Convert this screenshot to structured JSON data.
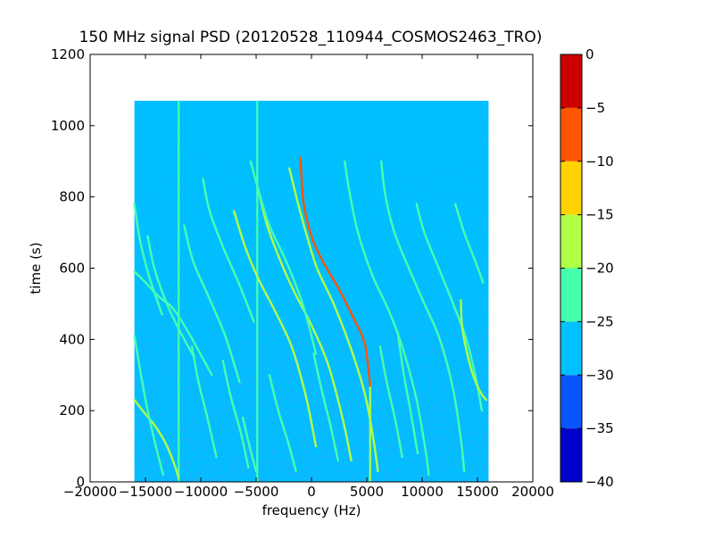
{
  "chart_data": {
    "type": "heatmap",
    "title": "150 MHz signal PSD (20120528_110944_COSMOS2463_TRO)",
    "xlabel": "frequency (Hz)",
    "ylabel": "time (s)",
    "xlim": [
      -20000,
      20000
    ],
    "ylim": [
      0,
      1200
    ],
    "x_ticks": [
      {
        "value": -20000,
        "label": "−20000"
      },
      {
        "value": -15000,
        "label": "−15000"
      },
      {
        "value": -10000,
        "label": "−10000"
      },
      {
        "value": -5000,
        "label": "−5000"
      },
      {
        "value": 0,
        "label": "0"
      },
      {
        "value": 5000,
        "label": "5000"
      },
      {
        "value": 10000,
        "label": "10000"
      },
      {
        "value": 15000,
        "label": "15000"
      },
      {
        "value": 20000,
        "label": "20000"
      }
    ],
    "y_ticks": [
      {
        "value": 0,
        "label": "0"
      },
      {
        "value": 200,
        "label": "200"
      },
      {
        "value": 400,
        "label": "400"
      },
      {
        "value": 600,
        "label": "600"
      },
      {
        "value": 800,
        "label": "800"
      },
      {
        "value": 1000,
        "label": "1000"
      },
      {
        "value": 1200,
        "label": "1200"
      }
    ],
    "data_extent": {
      "x": [
        -16000,
        16000
      ],
      "y": [
        0,
        1070
      ]
    },
    "grid": false,
    "colorbar": {
      "levels": [
        -40,
        -35,
        -30,
        -25,
        -20,
        -15,
        -10,
        -5,
        0
      ],
      "tick_labels": [
        "−40",
        "−35",
        "−30",
        "−25",
        "−20",
        "−15",
        "−10",
        "−5",
        "0"
      ],
      "colors": [
        "#0000cd",
        "#0a55ff",
        "#00c0ff",
        "#46ffae",
        "#b0ff46",
        "#ffd200",
        "#ff5400",
        "#cd0000"
      ]
    },
    "background_level_color": "#00c0ff",
    "vertical_lines": [
      {
        "x": -12000,
        "y_range": [
          0,
          1070
        ],
        "color": "#46ffae"
      },
      {
        "x": -4900,
        "y_range": [
          0,
          1070
        ],
        "color": "#46ffae"
      },
      {
        "x": 5300,
        "y_range": [
          0,
          280
        ],
        "color": "#b0ff46"
      }
    ],
    "series": [
      {
        "color": "#ff5400",
        "points": [
          [
            -1000,
            910
          ],
          [
            -700,
            780
          ],
          [
            0,
            690
          ],
          [
            1000,
            620
          ],
          [
            2500,
            540
          ],
          [
            3800,
            460
          ],
          [
            4800,
            390
          ],
          [
            5200,
            300
          ],
          [
            5300,
            270
          ]
        ]
      },
      {
        "color": "#b0ff46",
        "points": [
          [
            -2000,
            880
          ],
          [
            -1200,
            780
          ],
          [
            -500,
            700
          ],
          [
            500,
            600
          ],
          [
            2000,
            500
          ],
          [
            3500,
            380
          ],
          [
            4800,
            250
          ],
          [
            5600,
            120
          ],
          [
            6000,
            30
          ]
        ]
      },
      {
        "color": "#b0ff46",
        "points": [
          [
            -4800,
            820
          ],
          [
            -4000,
            720
          ],
          [
            -2800,
            620
          ],
          [
            -1500,
            530
          ],
          [
            0,
            440
          ],
          [
            1500,
            330
          ],
          [
            2800,
            180
          ],
          [
            3600,
            60
          ]
        ]
      },
      {
        "color": "#b0ff46",
        "points": [
          [
            -7000,
            760
          ],
          [
            -6000,
            660
          ],
          [
            -4800,
            570
          ],
          [
            -3300,
            480
          ],
          [
            -1800,
            380
          ],
          [
            -500,
            240
          ],
          [
            400,
            100
          ]
        ]
      },
      {
        "color": "#46ffae",
        "points": [
          [
            -5500,
            900
          ],
          [
            -4800,
            820
          ],
          [
            -3800,
            720
          ],
          [
            -2300,
            620
          ],
          [
            -800,
            500
          ],
          [
            400,
            360
          ]
        ]
      },
      {
        "color": "#46ffae",
        "points": [
          [
            3000,
            900
          ],
          [
            3400,
            820
          ],
          [
            4200,
            700
          ],
          [
            5500,
            580
          ],
          [
            7000,
            480
          ],
          [
            8300,
            370
          ],
          [
            9500,
            230
          ],
          [
            10300,
            90
          ],
          [
            10600,
            20
          ]
        ]
      },
      {
        "color": "#46ffae",
        "points": [
          [
            6300,
            900
          ],
          [
            6700,
            800
          ],
          [
            7500,
            700
          ],
          [
            8800,
            600
          ],
          [
            10200,
            500
          ],
          [
            11600,
            400
          ],
          [
            12800,
            260
          ],
          [
            13500,
            120
          ],
          [
            13800,
            30
          ]
        ]
      },
      {
        "color": "#46ffae",
        "points": [
          [
            9500,
            780
          ],
          [
            10200,
            700
          ],
          [
            11500,
            600
          ],
          [
            12800,
            500
          ],
          [
            14000,
            400
          ],
          [
            14800,
            300
          ],
          [
            15400,
            200
          ]
        ]
      },
      {
        "color": "#46ffae",
        "points": [
          [
            13000,
            780
          ],
          [
            13800,
            700
          ],
          [
            14800,
            620
          ],
          [
            15500,
            560
          ]
        ]
      },
      {
        "color": "#b0ff46",
        "points": [
          [
            13500,
            510
          ],
          [
            13600,
            440
          ],
          [
            14000,
            370
          ],
          [
            14600,
            300
          ],
          [
            15300,
            250
          ],
          [
            15800,
            230
          ]
        ]
      },
      {
        "color": "#46ffae",
        "points": [
          [
            -16000,
            590
          ],
          [
            -15000,
            560
          ],
          [
            -13800,
            520
          ],
          [
            -12600,
            490
          ],
          [
            -11500,
            440
          ],
          [
            -10400,
            380
          ],
          [
            -9000,
            300
          ]
        ]
      },
      {
        "color": "#b0ff46",
        "points": [
          [
            -16000,
            230
          ],
          [
            -15000,
            190
          ],
          [
            -14200,
            160
          ],
          [
            -13200,
            110
          ],
          [
            -12400,
            50
          ],
          [
            -12000,
            10
          ]
        ]
      },
      {
        "color": "#46ffae",
        "points": [
          [
            -16000,
            410
          ],
          [
            -15400,
            300
          ],
          [
            -14800,
            200
          ],
          [
            -13900,
            80
          ],
          [
            -13400,
            20
          ]
        ]
      },
      {
        "color": "#46ffae",
        "points": [
          [
            -16000,
            780
          ],
          [
            -15500,
            680
          ],
          [
            -14700,
            580
          ],
          [
            -13500,
            470
          ]
        ]
      },
      {
        "color": "#46ffae",
        "points": [
          [
            -14800,
            690
          ],
          [
            -14200,
            600
          ],
          [
            -13200,
            510
          ],
          [
            -12000,
            430
          ],
          [
            -10600,
            350
          ]
        ]
      },
      {
        "color": "#46ffae",
        "points": [
          [
            -11500,
            720
          ],
          [
            -10700,
            620
          ],
          [
            -9300,
            520
          ],
          [
            -7800,
            410
          ],
          [
            -6500,
            280
          ]
        ]
      },
      {
        "color": "#46ffae",
        "points": [
          [
            -9800,
            850
          ],
          [
            -9200,
            760
          ],
          [
            -8000,
            660
          ],
          [
            -6600,
            560
          ],
          [
            -5200,
            450
          ]
        ]
      },
      {
        "color": "#46ffae",
        "points": [
          [
            -10800,
            380
          ],
          [
            -10200,
            280
          ],
          [
            -9400,
            180
          ],
          [
            -8600,
            70
          ]
        ]
      },
      {
        "color": "#46ffae",
        "points": [
          [
            -8000,
            340
          ],
          [
            -7300,
            240
          ],
          [
            -6400,
            140
          ],
          [
            -5700,
            40
          ]
        ]
      },
      {
        "color": "#46ffae",
        "points": [
          [
            -3800,
            300
          ],
          [
            -3000,
            200
          ],
          [
            -2100,
            110
          ],
          [
            -1400,
            30
          ]
        ]
      },
      {
        "color": "#46ffae",
        "points": [
          [
            200,
            360
          ],
          [
            900,
            260
          ],
          [
            1700,
            160
          ],
          [
            2400,
            60
          ]
        ]
      },
      {
        "color": "#46ffae",
        "points": [
          [
            6200,
            380
          ],
          [
            6800,
            280
          ],
          [
            7600,
            170
          ],
          [
            8200,
            70
          ]
        ]
      },
      {
        "color": "#46ffae",
        "points": [
          [
            7800,
            420
          ],
          [
            8300,
            310
          ],
          [
            9000,
            190
          ],
          [
            9600,
            80
          ]
        ]
      },
      {
        "color": "#46ffae",
        "points": [
          [
            -6200,
            180
          ],
          [
            -5600,
            100
          ],
          [
            -5000,
            30
          ]
        ]
      }
    ]
  }
}
